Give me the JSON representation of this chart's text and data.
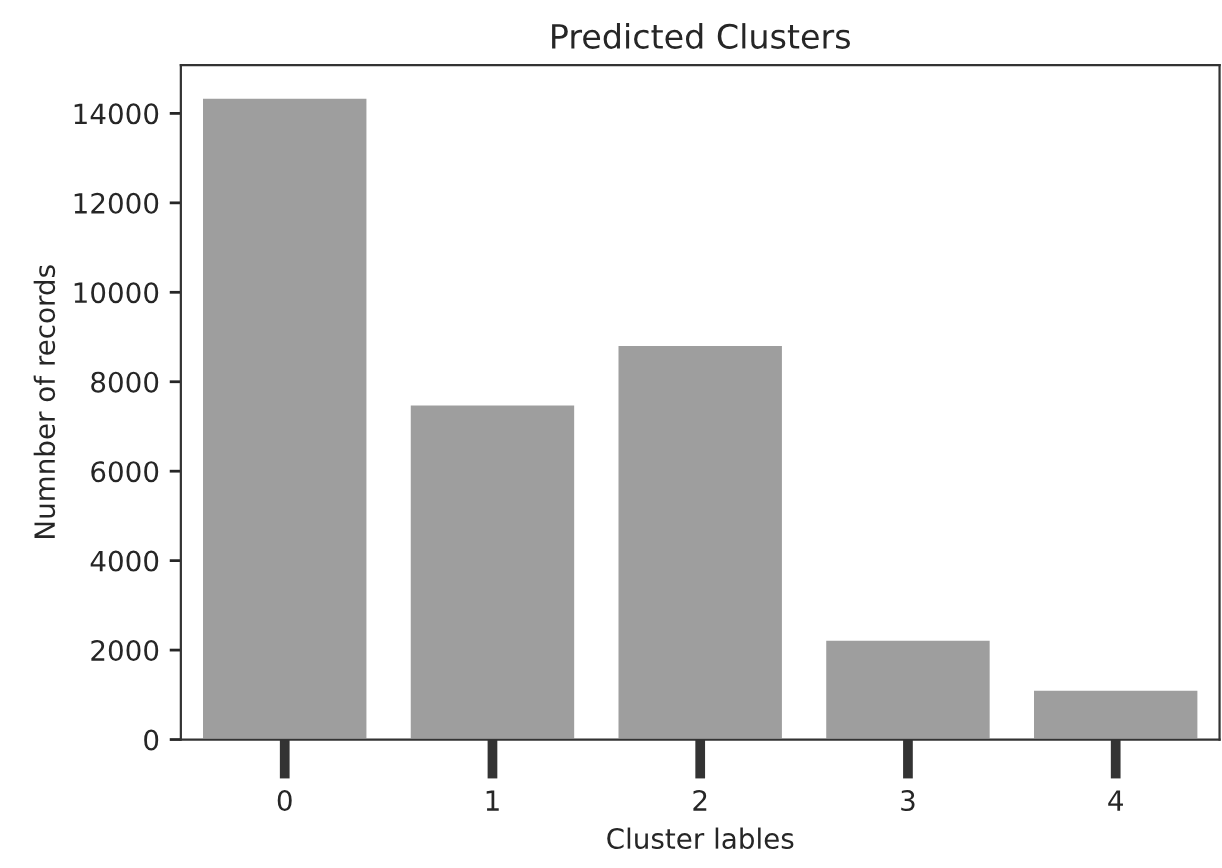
{
  "chart_data": {
    "type": "bar",
    "title": "Predicted Clusters",
    "xlabel": "Cluster lables",
    "ylabel": "Numnber of records",
    "categories": [
      "0",
      "1",
      "2",
      "3",
      "4"
    ],
    "values": [
      14360,
      7500,
      8830,
      2240,
      1120
    ],
    "color": "#9e9e9e",
    "ylim": [
      0,
      15080
    ],
    "yticks": [
      0,
      2000,
      4000,
      6000,
      8000,
      10000,
      12000,
      14000
    ],
    "grid": false
  }
}
